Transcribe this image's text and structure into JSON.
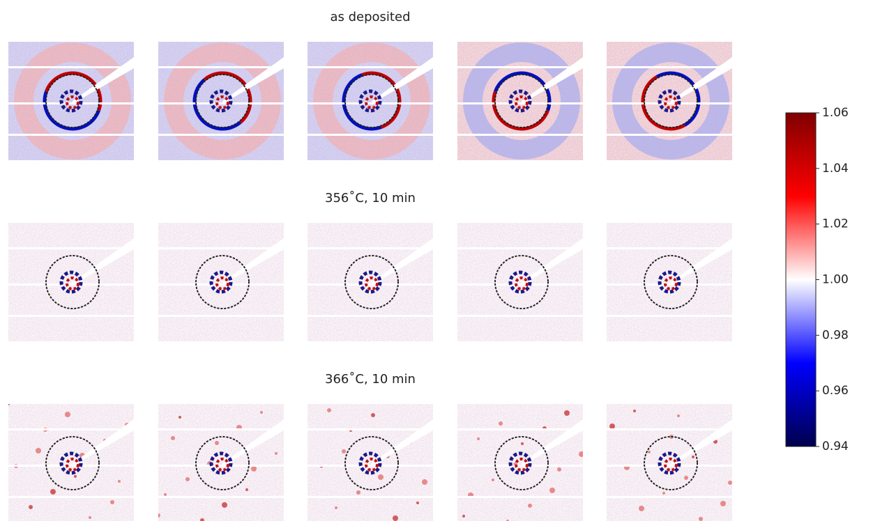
{
  "chart_data": {
    "type": "image-grid",
    "panels": [
      {
        "title": "as deposited"
      },
      {
        "title": "356$^\\circ$C, 10 min"
      },
      {
        "title": "366$^\\circ$C, 10 min"
      }
    ],
    "colorbar": {
      "clim": [
        0.94,
        1.06
      ],
      "cticks": [
        0.94,
        0.96,
        0.98,
        {
          "value": 1.0,
          "label": "1.00"
        },
        1.02,
        1.04,
        1.06
      ],
      "cmap": [
        "#00004c",
        "#0000ff",
        "#ffffff",
        "#ff0000",
        "#800000"
      ]
    }
  }
}
